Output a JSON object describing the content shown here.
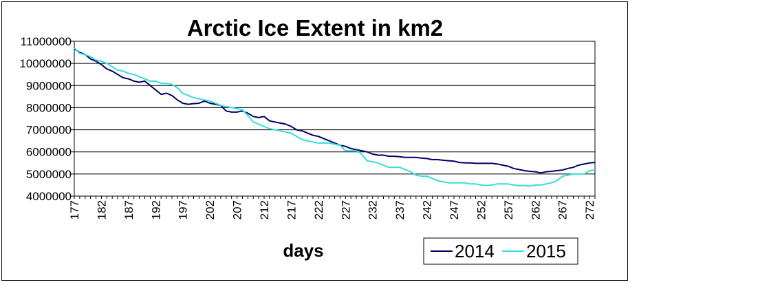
{
  "chart_data": {
    "type": "line",
    "title": "Arctic Ice Extent in km2",
    "xlabel": "days",
    "ylabel": "",
    "ylim": [
      4000000,
      11000000
    ],
    "xlim": [
      177,
      273
    ],
    "y_ticks": [
      "11000000",
      "10000000",
      "9000000",
      "8000000",
      "7000000",
      "6000000",
      "5000000",
      "4000000"
    ],
    "y_tick_values": [
      11000000,
      10000000,
      9000000,
      8000000,
      7000000,
      6000000,
      5000000,
      4000000
    ],
    "x_ticks": [
      "177",
      "182",
      "187",
      "192",
      "197",
      "202",
      "207",
      "212",
      "217",
      "222",
      "227",
      "232",
      "237",
      "242",
      "247",
      "252",
      "257",
      "262",
      "267",
      "272"
    ],
    "x_tick_values": [
      177,
      182,
      187,
      192,
      197,
      202,
      207,
      212,
      217,
      222,
      227,
      232,
      237,
      242,
      247,
      252,
      257,
      262,
      267,
      272
    ],
    "grid": "horizontal",
    "legend_position": "bottom-right",
    "series": [
      {
        "name": "2014",
        "color": "#000066",
        "x": [
          177,
          178,
          179,
          180,
          181,
          182,
          183,
          184,
          185,
          186,
          187,
          188,
          189,
          190,
          191,
          192,
          193,
          194,
          195,
          196,
          197,
          198,
          199,
          200,
          201,
          202,
          203,
          204,
          205,
          206,
          207,
          208,
          209,
          210,
          211,
          212,
          213,
          214,
          215,
          216,
          217,
          218,
          219,
          220,
          221,
          222,
          223,
          224,
          225,
          226,
          227,
          228,
          229,
          230,
          231,
          232,
          233,
          234,
          235,
          236,
          237,
          238,
          239,
          240,
          241,
          242,
          243,
          244,
          245,
          246,
          247,
          248,
          249,
          250,
          251,
          252,
          253,
          254,
          255,
          256,
          257,
          258,
          259,
          260,
          261,
          262,
          263,
          264,
          265,
          266,
          267,
          268,
          269,
          270,
          271,
          272,
          273
        ],
        "values": [
          10650000,
          10500000,
          10400000,
          10200000,
          10100000,
          9950000,
          9750000,
          9650000,
          9500000,
          9350000,
          9300000,
          9200000,
          9150000,
          9200000,
          9000000,
          8800000,
          8600000,
          8650000,
          8550000,
          8350000,
          8200000,
          8150000,
          8180000,
          8200000,
          8300000,
          8200000,
          8150000,
          8100000,
          7850000,
          7800000,
          7800000,
          7850000,
          7750000,
          7600000,
          7550000,
          7600000,
          7400000,
          7350000,
          7300000,
          7250000,
          7150000,
          7000000,
          6950000,
          6850000,
          6750000,
          6700000,
          6600000,
          6500000,
          6400000,
          6300000,
          6250000,
          6150000,
          6100000,
          6050000,
          6000000,
          5900000,
          5850000,
          5850000,
          5800000,
          5800000,
          5780000,
          5750000,
          5750000,
          5750000,
          5720000,
          5700000,
          5650000,
          5650000,
          5620000,
          5600000,
          5580000,
          5520000,
          5500000,
          5500000,
          5480000,
          5480000,
          5480000,
          5480000,
          5450000,
          5400000,
          5350000,
          5250000,
          5200000,
          5150000,
          5120000,
          5100000,
          5050000,
          5100000,
          5120000,
          5150000,
          5180000,
          5250000,
          5300000,
          5400000,
          5450000,
          5500000,
          5520000
        ]
      },
      {
        "name": "2015",
        "color": "#33dddd",
        "x": [
          177,
          178,
          179,
          180,
          181,
          182,
          183,
          184,
          185,
          186,
          187,
          188,
          189,
          190,
          191,
          192,
          193,
          194,
          195,
          196,
          197,
          198,
          199,
          200,
          201,
          202,
          203,
          204,
          205,
          206,
          207,
          208,
          209,
          210,
          211,
          212,
          213,
          214,
          215,
          216,
          217,
          218,
          219,
          220,
          221,
          222,
          223,
          224,
          225,
          226,
          227,
          228,
          229,
          230,
          231,
          232,
          233,
          234,
          235,
          236,
          237,
          238,
          239,
          240,
          241,
          242,
          243,
          244,
          245,
          246,
          247,
          248,
          249,
          250,
          251,
          252,
          253,
          254,
          255,
          256,
          257,
          258,
          259,
          260,
          261,
          262,
          263,
          264,
          265,
          266,
          267,
          268,
          269,
          270,
          271,
          272,
          273
        ],
        "values": [
          10700000,
          10450000,
          10400000,
          10300000,
          10150000,
          10100000,
          10000000,
          9850000,
          9700000,
          9650000,
          9550000,
          9500000,
          9400000,
          9300000,
          9200000,
          9200000,
          9100000,
          9100000,
          9050000,
          8900000,
          8650000,
          8550000,
          8450000,
          8400000,
          8350000,
          8300000,
          8200000,
          8100000,
          8050000,
          8000000,
          7950000,
          7900000,
          7650000,
          7350000,
          7250000,
          7150000,
          7050000,
          7000000,
          6950000,
          6900000,
          6850000,
          6700000,
          6550000,
          6500000,
          6450000,
          6400000,
          6400000,
          6400000,
          6350000,
          6300000,
          6050000,
          6050000,
          6050000,
          5900000,
          5600000,
          5550000,
          5500000,
          5400000,
          5300000,
          5300000,
          5300000,
          5200000,
          5100000,
          4950000,
          4900000,
          4900000,
          4800000,
          4700000,
          4650000,
          4600000,
          4600000,
          4600000,
          4600000,
          4550000,
          4550000,
          4500000,
          4480000,
          4500000,
          4550000,
          4550000,
          4550000,
          4500000,
          4480000,
          4480000,
          4450000,
          4500000,
          4500000,
          4550000,
          4600000,
          4700000,
          4900000,
          4950000,
          5000000,
          5000000,
          5000000,
          5150000,
          5180000
        ]
      }
    ]
  }
}
